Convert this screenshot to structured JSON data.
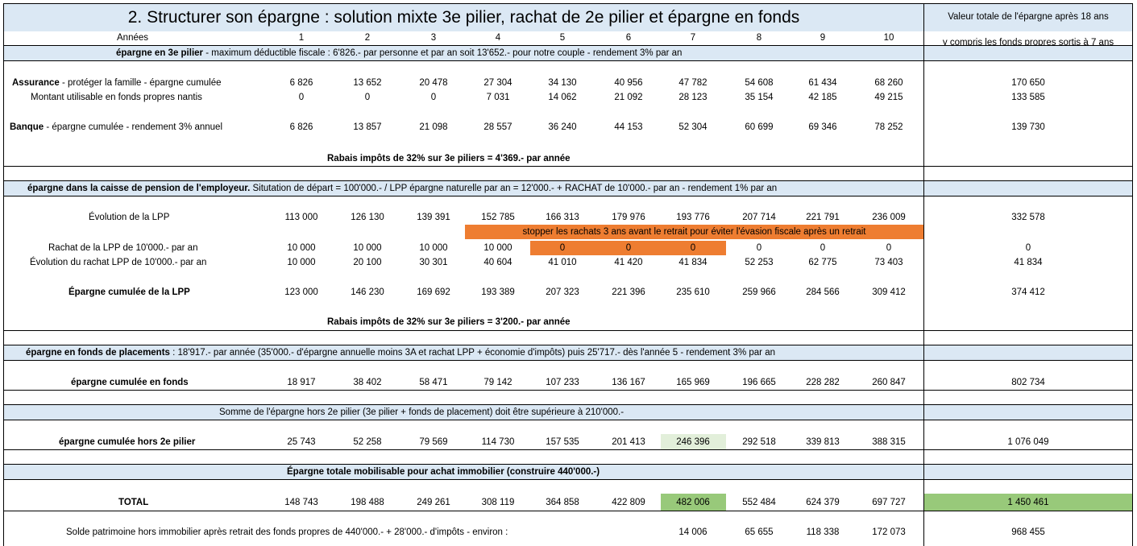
{
  "title": "2. Structurer son épargne : solution mixte 3e pilier, rachat de 2e pilier et épargne en fonds",
  "total_header": [
    "Valeur totale de l'épargne après 18 ans",
    "y compris les fonds propres sortis à 7 ans"
  ],
  "years_label": "Années",
  "years": [
    "1",
    "2",
    "3",
    "4",
    "5",
    "6",
    "7",
    "8",
    "9",
    "10"
  ],
  "s1": {
    "head_bold": "épargne en 3e pilier",
    "head_rest": " - maximum déductible fiscale : 6'826.- par personne et par an soit 13'652.- pour notre couple - rendement 3% par an",
    "r1_bold": "Assurance",
    "r1_rest": " - protéger la famille - épargne cumulée",
    "r1": [
      "6 826",
      "13 652",
      "20 478",
      "27 304",
      "34 130",
      "40 956",
      "47 782",
      "54 608",
      "61 434",
      "68 260"
    ],
    "r1_total": "170 650",
    "r2_label": "Montant utilisable en fonds propres nantis",
    "r2": [
      "0",
      "0",
      "0",
      "7 031",
      "14 062",
      "21 092",
      "28 123",
      "35 154",
      "42 185",
      "49 215"
    ],
    "r2_total": "133 585",
    "r3_bold": "Banque",
    "r3_rest": " - épargne cumulée - rendement 3% annuel",
    "r3": [
      "6 826",
      "13 857",
      "21 098",
      "28 557",
      "36 240",
      "44 153",
      "52 304",
      "60 699",
      "69 346",
      "78 252"
    ],
    "r3_total": "139 730",
    "rebate": "Rabais impôts de 32% sur 3e piliers = 4'369.- par année"
  },
  "s2": {
    "head_bold": "épargne dans la caisse de pension de l'employeur.",
    "head_rest": " Situtation de départ = 100'000.- / LPP épargne naturelle par an = 12'000.- + RACHAT de 10'000.- par an - rendement 1% par an",
    "r1_label": "Évolution de la LPP",
    "r1": [
      "113 000",
      "126 130",
      "139 391",
      "152 785",
      "166 313",
      "179 976",
      "193 776",
      "207 714",
      "221 791",
      "236 009"
    ],
    "r1_total": "332 578",
    "note": "stopper les rachats 3 ans avant le retrait pour éviter l'évasion fiscale après un retrait",
    "r2_label": "Rachat de la LPP de 10'000.- par an",
    "r2": [
      "10 000",
      "10 000",
      "10 000",
      "10 000",
      "0",
      "0",
      "0",
      "0",
      "0",
      "0"
    ],
    "r2_total": "0",
    "r3_label": "Évolution du rachat LPP de 10'000.- par an",
    "r3": [
      "10 000",
      "20 100",
      "30 301",
      "40 604",
      "41 010",
      "41 420",
      "41 834",
      "52 253",
      "62 775",
      "73 403"
    ],
    "r3_total": "41 834",
    "r4_label": "Épargne cumulée de la LPP",
    "r4": [
      "123 000",
      "146 230",
      "169 692",
      "193 389",
      "207 323",
      "221 396",
      "235 610",
      "259 966",
      "284 566",
      "309 412"
    ],
    "r4_total": "374 412",
    "rebate": "Rabais impôts de 32% sur 3e piliers = 3'200.- par année"
  },
  "s3": {
    "head_bold": "épargne en fonds de placements",
    "head_rest": " : 18'917.- par année (35'000.- d'épargne annuelle moins 3A et rachat LPP + économie d'impôts) puis 25'717.- dès l'année 5 - rendement 3% par an",
    "r1_label": "épargne cumulée en fonds",
    "r1": [
      "18 917",
      "38 402",
      "58 471",
      "79 142",
      "107 233",
      "136 167",
      "165 969",
      "196 665",
      "228 282",
      "260 847"
    ],
    "r1_total": "802 734"
  },
  "s4": {
    "head": "Somme de l'épargne hors 2e pilier (3e pilier + fonds de placement) doit être supérieure à 210'000.-",
    "r1_label": "épargne cumulée hors 2e pilier",
    "r1": [
      "25 743",
      "52 258",
      "79 569",
      "114 730",
      "157 535",
      "201 413",
      "246 396",
      "292 518",
      "339 813",
      "388 315"
    ],
    "r1_total": "1 076 049"
  },
  "s5": {
    "head": "Épargne totale mobilisable pour achat immobilier (construire 440'000.-)",
    "total_label": "TOTAL",
    "total": [
      "148 743",
      "198 488",
      "249 261",
      "308 119",
      "364 858",
      "422 809",
      "482 006",
      "552 484",
      "624 379",
      "697 727"
    ],
    "total_total": "1 450 461",
    "solde_label": "Solde patrimoine hors immobilier après retrait des fonds propres de 440'000.- + 28'000.- d'impôts - environ :",
    "solde": [
      "14 006",
      "65 655",
      "118 338",
      "172 073"
    ],
    "solde_total": "968 455"
  },
  "colors": {
    "band": "#dbe8f4",
    "orange": "#ee7d31",
    "green": "#98c97a",
    "light_green": "#e2efda"
  }
}
